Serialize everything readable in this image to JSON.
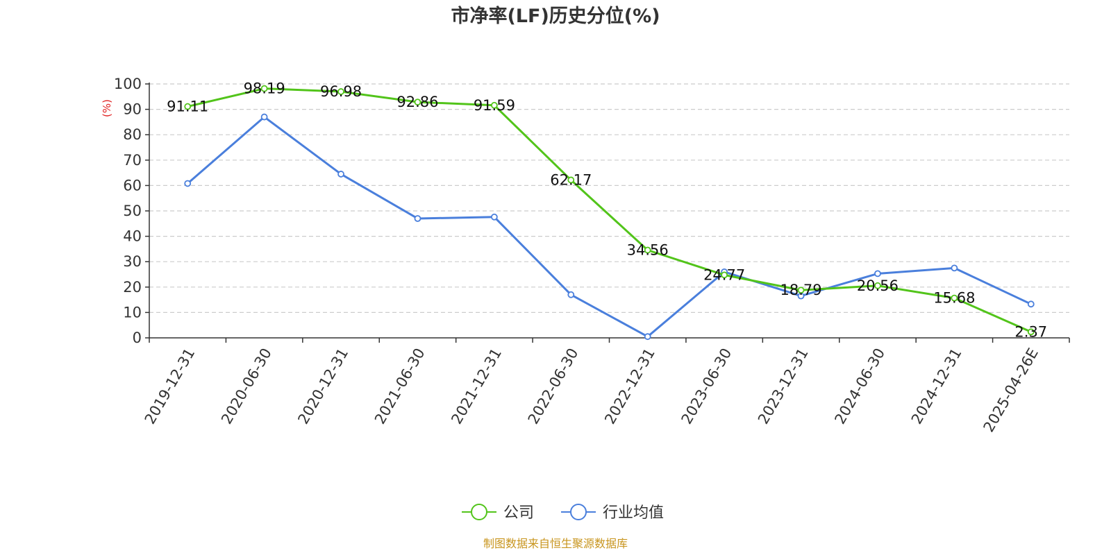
{
  "chart_data": {
    "type": "line",
    "title": "市净率(LF)历史分位(%)",
    "ylabel": "(%)",
    "ylim": [
      0,
      100
    ],
    "yticks": [
      0,
      10,
      20,
      30,
      40,
      50,
      60,
      70,
      80,
      90,
      100
    ],
    "grid": true,
    "legend_position": "bottom-center",
    "categories": [
      "2019-12-31",
      "2020-06-30",
      "2020-12-31",
      "2021-06-30",
      "2021-12-31",
      "2022-06-30",
      "2022-12-31",
      "2023-06-30",
      "2023-12-31",
      "2024-06-30",
      "2024-12-31",
      "2025-04-26E"
    ],
    "series": [
      {
        "name": "公司",
        "color": "#52c41a",
        "values": [
          91.11,
          98.19,
          96.98,
          92.86,
          91.59,
          62.17,
          34.56,
          24.77,
          18.79,
          20.56,
          15.68,
          2.37
        ],
        "labels": [
          "91.11",
          "98.19",
          "96.98",
          "92.86",
          "91.59",
          "62.17",
          "34.56",
          "24.77",
          "18.79",
          "20.56",
          "15.68",
          "2.37"
        ]
      },
      {
        "name": "行业均值",
        "color": "#4a7fdc",
        "values": [
          60.8,
          87.0,
          64.5,
          47.0,
          47.6,
          17.0,
          0.5,
          26.0,
          16.5,
          25.3,
          27.5,
          13.3
        ]
      }
    ],
    "source": "制图数据来自恒生聚源数据库",
    "source_color": "#c8951e",
    "unit_color": "#e02020"
  }
}
